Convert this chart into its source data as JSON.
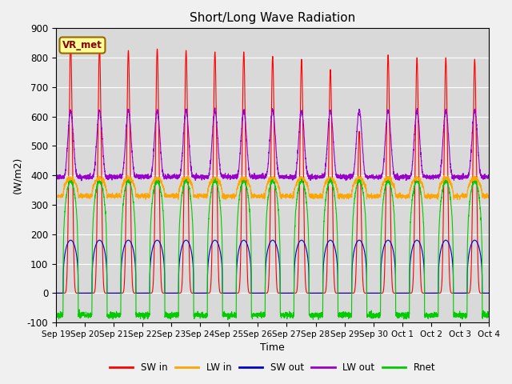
{
  "title": "Short/Long Wave Radiation",
  "xlabel": "Time",
  "ylabel": "(W/m2)",
  "ylim": [
    -100,
    900
  ],
  "xlim": [
    0,
    360
  ],
  "station_label": "VR_met",
  "x_tick_labels": [
    "Sep 19",
    "Sep 20",
    "Sep 21",
    "Sep 22",
    "Sep 23",
    "Sep 24",
    "Sep 25",
    "Sep 26",
    "Sep 27",
    "Sep 28",
    "Sep 29",
    "Sep 30",
    "Oct 1",
    "Oct 2",
    "Oct 3",
    "Oct 4"
  ],
  "x_tick_positions": [
    0,
    24,
    48,
    72,
    96,
    120,
    144,
    168,
    192,
    216,
    240,
    264,
    288,
    312,
    336,
    360
  ],
  "legend_labels": [
    "SW in",
    "LW in",
    "SW out",
    "LW out",
    "Rnet"
  ],
  "colors": {
    "SW in": "#ff0000",
    "LW in": "#ffa500",
    "SW out": "#0000cc",
    "LW out": "#9900cc",
    "Rnet": "#00cc00"
  },
  "sw_in_peaks": [
    850,
    835,
    825,
    830,
    825,
    820,
    820,
    805,
    795,
    760,
    550,
    810,
    800,
    800,
    795
  ],
  "lw_in_base": 330,
  "lw_in_peak": 390,
  "sw_out_peak": 180,
  "lw_out_base": 395,
  "lw_out_peak": 620,
  "rnet_peak": 380,
  "rnet_night_val": -75,
  "num_days": 15,
  "points_per_day": 240,
  "background_color": "#d9d9d9",
  "figure_background": "#f0f0f0",
  "figsize": [
    6.4,
    4.8
  ],
  "dpi": 100
}
